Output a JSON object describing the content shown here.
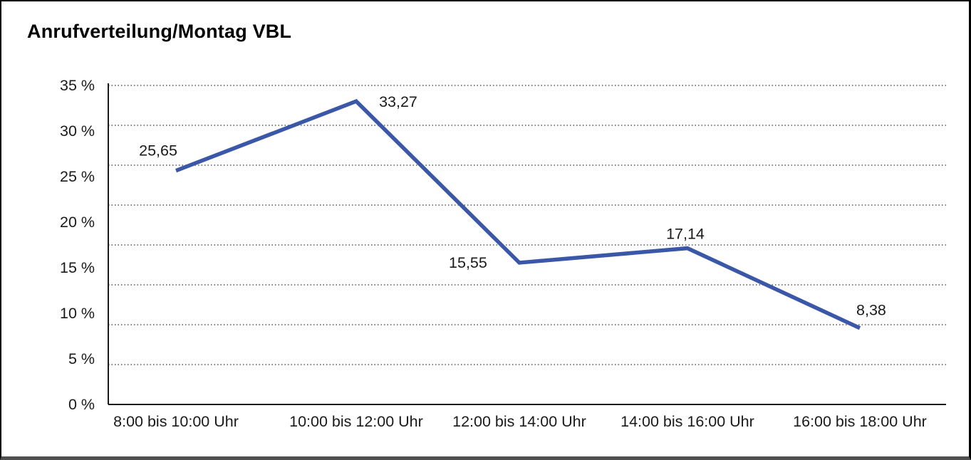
{
  "title": "Anrufverteilung/Montag VBL",
  "chart_data": {
    "type": "line",
    "title": "Anrufverteilung/Montag VBL",
    "categories": [
      "8:00 bis 10:00 Uhr",
      "10:00 bis 12:00 Uhr",
      "12:00 bis 14:00 Uhr",
      "14:00 bis 16:00 Uhr",
      "16:00 bis 18:00 Uhr"
    ],
    "values": [
      25.65,
      33.27,
      15.55,
      17.14,
      8.38
    ],
    "data_labels": [
      "25,65",
      "33,27",
      "15,55",
      "17,14",
      "8,38"
    ],
    "y_tick_labels": [
      "35 %",
      "30 %",
      "25 %",
      "20 %",
      "15 %",
      "10 %",
      "5 %",
      "0 %"
    ],
    "y_tick_values": [
      35,
      30,
      25,
      20,
      15,
      10,
      5,
      0
    ],
    "ylim": [
      0,
      35
    ],
    "xlabel": "",
    "ylabel": "",
    "grid": "horizontal-dotted",
    "legend": "none",
    "line_color": "#3A57A8",
    "axis_color": "#1a1a1a",
    "gridline_color": "#555555",
    "text_color": "#1a1a1a"
  }
}
